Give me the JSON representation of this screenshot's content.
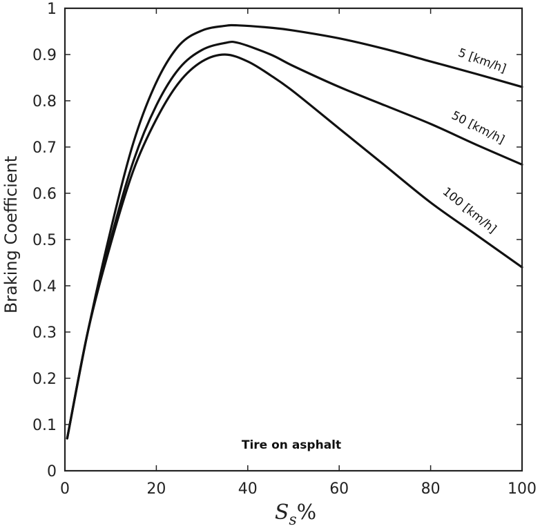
{
  "chart_data": {
    "type": "line",
    "title": "",
    "xlabel": "S_s%",
    "xlabel_main": "S",
    "xlabel_sub": "s",
    "xlabel_suffix": "%",
    "ylabel": "Braking Coefficient",
    "xlim": [
      0,
      100
    ],
    "ylim": [
      0,
      1
    ],
    "grid": false,
    "xticks": [
      0,
      20,
      40,
      60,
      80,
      100
    ],
    "xtick_labels": [
      "0",
      "20",
      "40",
      "60",
      "80",
      "100"
    ],
    "yticks": [
      0,
      0.1,
      0.2,
      0.3,
      0.4,
      0.5,
      0.6,
      0.7,
      0.8,
      0.9,
      1
    ],
    "ytick_labels": [
      "0",
      "0.1",
      "0.2",
      "0.3",
      "0.4",
      "0.5",
      "0.6",
      "0.7",
      "0.8",
      "0.9",
      "1"
    ],
    "annotation": "Tire on asphalt",
    "series": [
      {
        "name": "5 [km/h]",
        "x": [
          0.5,
          5,
          10,
          15,
          20,
          25,
          30,
          35,
          38,
          45,
          50,
          60,
          70,
          80,
          90,
          100
        ],
        "y": [
          0.07,
          0.3,
          0.52,
          0.71,
          0.84,
          0.92,
          0.952,
          0.962,
          0.963,
          0.958,
          0.952,
          0.935,
          0.912,
          0.885,
          0.858,
          0.83
        ]
      },
      {
        "name": "50 [km/h]",
        "x": [
          0.5,
          5,
          10,
          15,
          20,
          25,
          30,
          35,
          38,
          45,
          50,
          60,
          70,
          80,
          90,
          100
        ],
        "y": [
          0.07,
          0.3,
          0.5,
          0.67,
          0.79,
          0.87,
          0.91,
          0.925,
          0.925,
          0.9,
          0.875,
          0.83,
          0.79,
          0.75,
          0.705,
          0.662
        ]
      },
      {
        "name": "100 [km/h]",
        "x": [
          0.5,
          5,
          10,
          15,
          20,
          25,
          30,
          35,
          40,
          45,
          50,
          60,
          70,
          80,
          90,
          100
        ],
        "y": [
          0.07,
          0.3,
          0.49,
          0.65,
          0.76,
          0.84,
          0.885,
          0.9,
          0.885,
          0.855,
          0.82,
          0.74,
          0.66,
          0.58,
          0.51,
          0.44
        ]
      }
    ]
  }
}
